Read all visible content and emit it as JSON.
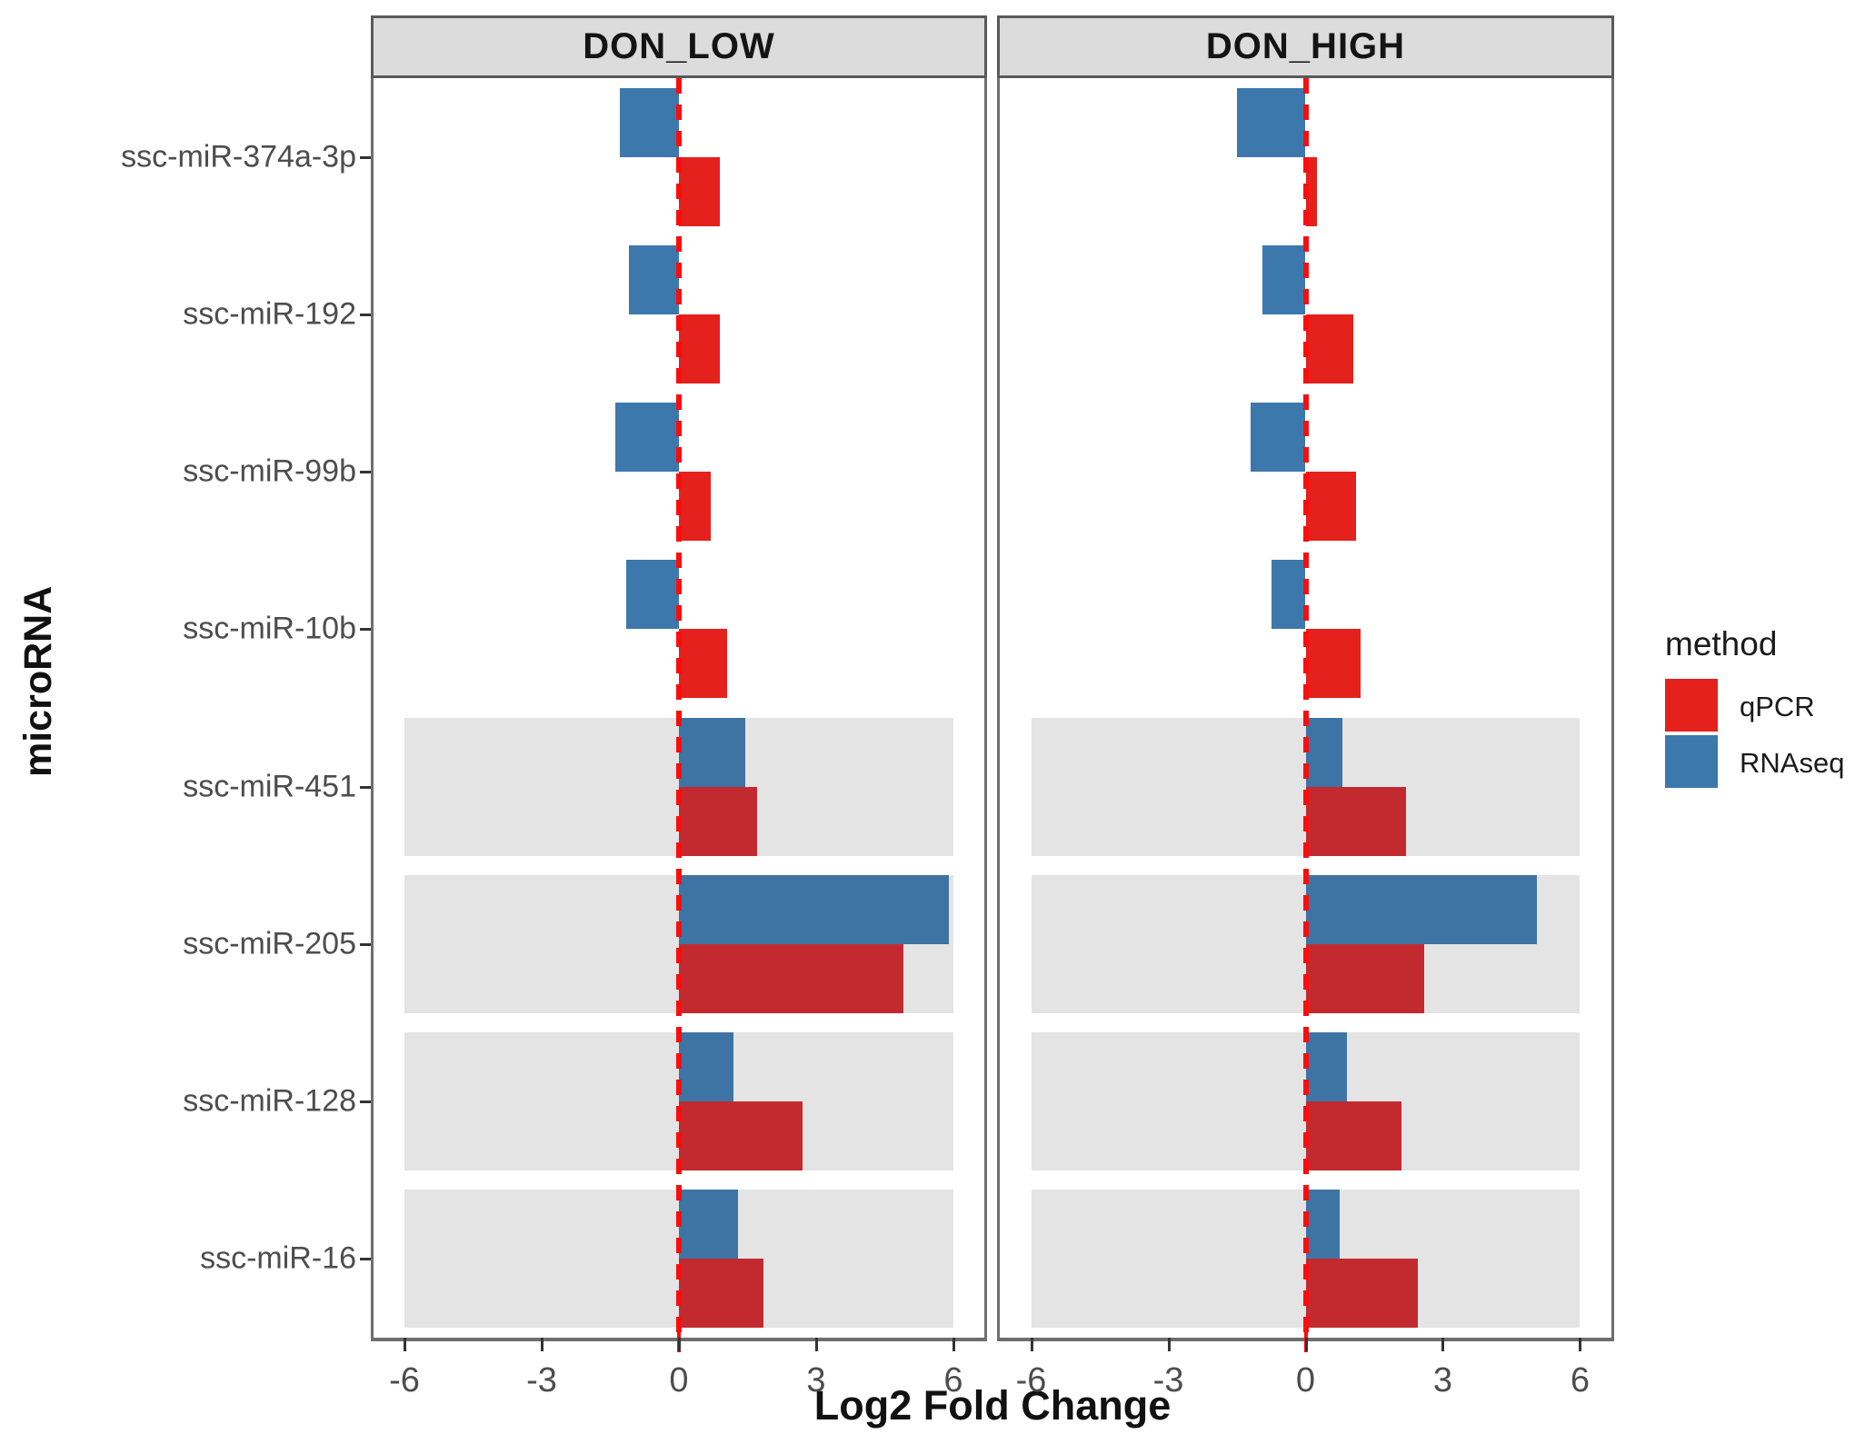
{
  "chart_data": {
    "type": "bar",
    "orientation": "horizontal",
    "title": "",
    "xlabel": "Log2 Fold Change",
    "ylabel": "microRNA",
    "xlim": [
      -6.7,
      6.7
    ],
    "x_ticks": [
      "-6",
      "-3",
      "0",
      "3",
      "6"
    ],
    "x_tick_values": [
      -6,
      -3,
      0,
      3,
      6
    ],
    "grid": false,
    "zero_reference_line": {
      "style": "dashed",
      "color": "#fb0d0d",
      "x": 0
    },
    "categories": [
      "ssc-miR-374a-3p",
      "ssc-miR-192",
      "ssc-miR-99b",
      "ssc-miR-10b",
      "ssc-miR-451",
      "ssc-miR-205",
      "ssc-miR-128",
      "ssc-miR-16"
    ],
    "shaded_categories": [
      "ssc-miR-451",
      "ssc-miR-205",
      "ssc-miR-128",
      "ssc-miR-16"
    ],
    "shaded_flags": [
      false,
      false,
      false,
      false,
      true,
      true,
      true,
      true
    ],
    "facets": [
      {
        "title": "DON_LOW",
        "series": [
          {
            "name": "RNAseq",
            "values": [
              -1.3,
              -1.1,
              -1.4,
              -1.15,
              1.45,
              5.9,
              1.2,
              1.3
            ]
          },
          {
            "name": "qPCR",
            "values": [
              0.9,
              0.9,
              0.7,
              1.05,
              1.7,
              4.9,
              2.7,
              1.85
            ]
          }
        ]
      },
      {
        "title": "DON_HIGH",
        "series": [
          {
            "name": "RNAseq",
            "values": [
              -1.5,
              -0.95,
              -1.2,
              -0.75,
              0.8,
              5.05,
              0.9,
              0.75
            ]
          },
          {
            "name": "qPCR",
            "values": [
              0.25,
              1.05,
              1.1,
              1.2,
              2.2,
              2.6,
              2.1,
              2.45
            ]
          }
        ]
      }
    ],
    "legend": {
      "position": "right",
      "title": "method",
      "items": [
        {
          "label": "qPCR",
          "color": "#e4211c"
        },
        {
          "label": "RNAseq",
          "color": "#3d78ad"
        }
      ]
    }
  },
  "colors": {
    "qpcr": "#e4211c",
    "rnaseq": "#3d78ad",
    "qpcr_on_band": "#c32a30",
    "rnaseq_on_band": "#3d74a4",
    "shade_band": "#e4e4e4",
    "strip_background": "#dcdcdc",
    "panel_border": "#6e6e6e",
    "zero_line": "#fb0d0d",
    "tick_text": "#4d4d4d"
  }
}
